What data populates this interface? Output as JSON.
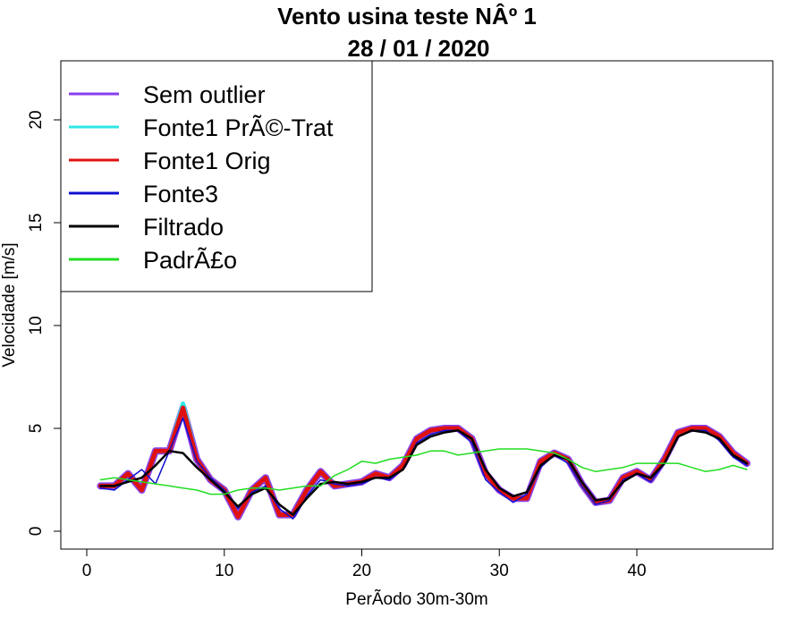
{
  "chart_data": {
    "type": "line",
    "title": "Vento usina teste NÂº 1",
    "subtitle": "28 / 01 / 2020",
    "xlabel": "PerÃ­odo 30m-30m",
    "ylabel": "Velocidade [m/s]",
    "xlim": [
      0,
      50
    ],
    "ylim": [
      0,
      23
    ],
    "x_ticks": [
      0,
      10,
      20,
      30,
      40
    ],
    "y_ticks": [
      0,
      5,
      10,
      15,
      20
    ],
    "grid": false,
    "legend_position": "top-left",
    "x": [
      1,
      2,
      3,
      4,
      5,
      6,
      7,
      8,
      9,
      10,
      11,
      12,
      13,
      14,
      15,
      16,
      17,
      18,
      19,
      20,
      21,
      22,
      23,
      24,
      25,
      26,
      27,
      28,
      29,
      30,
      31,
      32,
      33,
      34,
      35,
      36,
      37,
      38,
      39,
      40,
      41,
      42,
      43,
      44,
      45,
      46,
      47,
      48
    ],
    "series": [
      {
        "name": "Sem outlier",
        "color": "#8a3ef0",
        "width": 8,
        "values": [
          2.2,
          2.2,
          2.8,
          2.0,
          3.9,
          3.9,
          6.0,
          3.5,
          2.5,
          2.0,
          0.7,
          2.0,
          2.6,
          0.8,
          0.8,
          2.0,
          2.9,
          2.2,
          2.3,
          2.4,
          2.8,
          2.6,
          3.2,
          4.5,
          4.9,
          5.0,
          5.0,
          4.5,
          2.8,
          2.0,
          1.6,
          1.6,
          3.4,
          3.8,
          3.5,
          2.3,
          1.4,
          1.5,
          2.6,
          2.9,
          2.5,
          3.5,
          4.8,
          5.0,
          5.0,
          4.6,
          3.8,
          3.3
        ]
      },
      {
        "name": "Fonte1 PrÃ©-Trat",
        "color": "#2fe6e6",
        "width": 5,
        "values": [
          2.2,
          2.2,
          2.8,
          2.0,
          3.9,
          3.9,
          6.2,
          3.5,
          2.5,
          2.0,
          0.7,
          2.0,
          2.6,
          0.8,
          0.8,
          2.0,
          2.9,
          2.2,
          2.3,
          2.4,
          2.8,
          2.6,
          3.2,
          4.5,
          4.9,
          5.0,
          5.0,
          4.5,
          2.8,
          2.0,
          1.6,
          1.6,
          3.4,
          3.8,
          3.5,
          2.3,
          1.4,
          1.5,
          2.6,
          2.9,
          2.5,
          3.5,
          4.8,
          5.0,
          5.0,
          4.6,
          3.8,
          3.3
        ]
      },
      {
        "name": "Fonte1 Orig",
        "color": "#e01010",
        "width": 5,
        "values": [
          2.2,
          2.2,
          2.8,
          2.0,
          3.9,
          3.9,
          6.0,
          3.5,
          2.5,
          2.0,
          0.7,
          2.0,
          2.6,
          0.8,
          0.8,
          2.0,
          2.9,
          2.2,
          2.3,
          2.4,
          2.8,
          2.6,
          3.2,
          4.5,
          4.9,
          5.0,
          5.0,
          4.5,
          2.8,
          2.0,
          1.6,
          1.6,
          3.4,
          3.8,
          3.5,
          2.3,
          1.4,
          1.5,
          2.6,
          2.9,
          2.5,
          3.5,
          4.8,
          5.0,
          5.0,
          4.6,
          3.8,
          3.3
        ]
      },
      {
        "name": "Fonte3",
        "color": "#1010d0",
        "width": 1.5,
        "values": [
          2.1,
          2.0,
          2.5,
          3.0,
          2.3,
          3.9,
          5.5,
          3.4,
          2.6,
          2.0,
          1.1,
          1.9,
          2.2,
          1.1,
          0.6,
          1.7,
          2.5,
          2.3,
          2.2,
          2.3,
          2.6,
          2.5,
          3.0,
          4.3,
          4.7,
          4.9,
          4.9,
          4.3,
          2.5,
          1.9,
          1.4,
          1.8,
          3.1,
          3.7,
          3.3,
          2.2,
          1.3,
          1.5,
          2.5,
          2.8,
          2.4,
          3.3,
          4.6,
          4.9,
          4.9,
          4.4,
          3.6,
          3.2
        ]
      },
      {
        "name": "Filtrado",
        "color": "#000000",
        "width": 2.5,
        "values": [
          2.2,
          2.2,
          2.4,
          2.6,
          3.2,
          3.9,
          3.8,
          3.1,
          2.5,
          1.9,
          1.2,
          1.8,
          2.1,
          1.3,
          0.8,
          1.6,
          2.3,
          2.4,
          2.3,
          2.4,
          2.6,
          2.6,
          3.0,
          4.2,
          4.6,
          4.8,
          4.9,
          4.5,
          3.0,
          2.1,
          1.7,
          1.9,
          3.2,
          3.7,
          3.5,
          2.4,
          1.5,
          1.6,
          2.4,
          2.8,
          2.6,
          3.3,
          4.6,
          4.9,
          4.8,
          4.5,
          3.7,
          3.3
        ]
      },
      {
        "name": "PadrÃ£o",
        "color": "#22dd22",
        "width": 1.5,
        "values": [
          2.5,
          2.6,
          2.5,
          2.4,
          2.3,
          2.2,
          2.1,
          2.0,
          1.8,
          1.8,
          2.0,
          2.1,
          2.1,
          2.0,
          2.1,
          2.2,
          2.2,
          2.7,
          3.0,
          3.4,
          3.3,
          3.5,
          3.6,
          3.7,
          3.9,
          3.9,
          3.7,
          3.8,
          3.9,
          4.0,
          4.0,
          4.0,
          3.9,
          3.8,
          3.5,
          3.1,
          2.9,
          3.0,
          3.1,
          3.3,
          3.3,
          3.3,
          3.3,
          3.1,
          2.9,
          3.0,
          3.2,
          3.0
        ]
      }
    ]
  }
}
